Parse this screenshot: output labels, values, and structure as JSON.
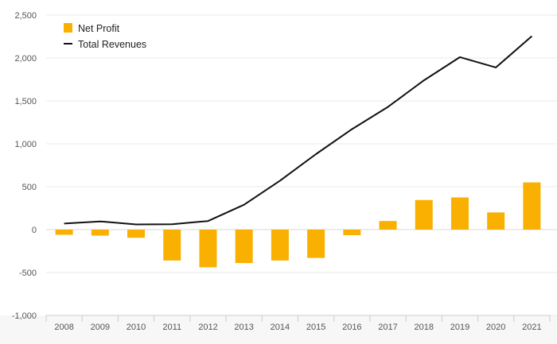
{
  "chart_data": {
    "type": "bar",
    "title": "",
    "xlabel": "",
    "ylabel": "",
    "categories": [
      "2008",
      "2009",
      "2010",
      "2011",
      "2012",
      "2013",
      "2014",
      "2015",
      "2016",
      "2017",
      "2018",
      "2019",
      "2020",
      "2021"
    ],
    "ylim": [
      -1000,
      2500
    ],
    "yticks": [
      -1000,
      -500,
      0,
      500,
      1000,
      1500,
      2000,
      2500
    ],
    "ytick_labels": [
      "-1,000",
      "-500",
      "0",
      "500",
      "1,000",
      "1,500",
      "2,000",
      "2,500"
    ],
    "grid": true,
    "legend_position": "top-left",
    "series": [
      {
        "name": "Net Profit",
        "kind": "bar",
        "color": "#f9b000",
        "values": [
          -60,
          -70,
          -95,
          -360,
          -440,
          -390,
          -360,
          -330,
          -65,
          100,
          345,
          375,
          200,
          550
        ]
      },
      {
        "name": "Total Revenues",
        "kind": "line",
        "color": "#111111",
        "values": [
          70,
          95,
          60,
          62,
          100,
          290,
          570,
          880,
          1170,
          1430,
          1740,
          2010,
          1890,
          2255
        ]
      }
    ]
  }
}
